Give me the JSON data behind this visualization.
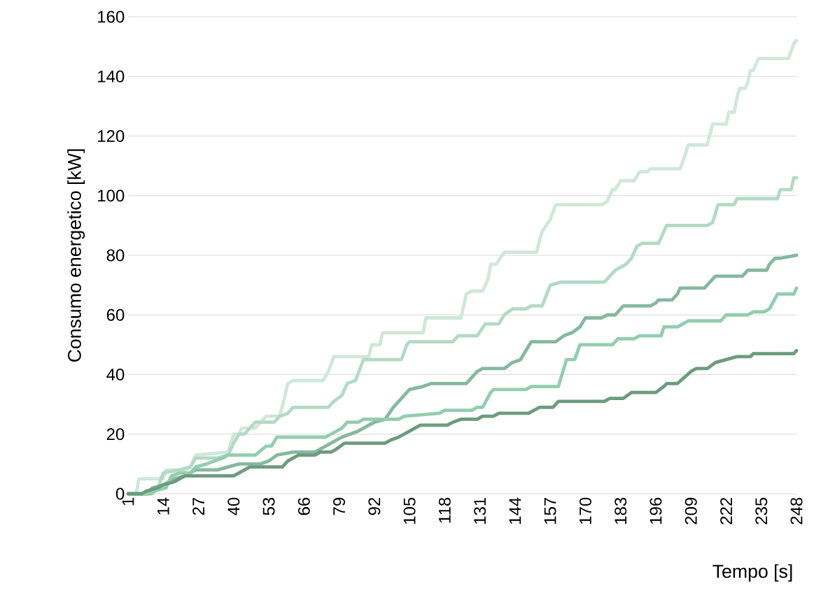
{
  "chart_data": {
    "type": "line",
    "xlabel": "Tempo [s]",
    "ylabel": "Consumo energetico [kW]",
    "xlim": [
      1,
      248
    ],
    "ylim": [
      0,
      160
    ],
    "xticks": [
      1,
      14,
      27,
      40,
      53,
      66,
      79,
      92,
      105,
      118,
      131,
      144,
      157,
      170,
      183,
      196,
      209,
      222,
      235,
      248
    ],
    "yticks": [
      0,
      20,
      40,
      60,
      80,
      100,
      120,
      140,
      160
    ],
    "grid": "y",
    "line_style": "solid",
    "series": [
      {
        "color": "#d0e7da",
        "x": [
          1,
          4,
          5,
          14,
          15,
          22,
          24,
          26,
          38,
          40,
          42,
          43,
          48,
          50,
          52,
          57,
          59,
          60,
          62,
          73,
          75,
          77,
          90,
          91,
          94,
          95,
          110,
          111,
          124,
          126,
          128,
          132,
          134,
          135,
          137,
          140,
          152,
          153,
          154,
          157,
          159,
          176,
          178,
          180,
          181,
          183,
          188,
          190,
          193,
          194,
          205,
          207,
          208,
          215,
          217,
          222,
          223,
          225,
          226,
          227,
          229,
          230,
          231,
          232,
          234,
          245,
          247,
          248
        ],
        "values": [
          0,
          0,
          5,
          5,
          8,
          8,
          9,
          13,
          14,
          20,
          20,
          22,
          22,
          24,
          26,
          26,
          33,
          37,
          38,
          38,
          41,
          46,
          46,
          50,
          50,
          54,
          54,
          59,
          59,
          67,
          68,
          68,
          72,
          77,
          77,
          81,
          81,
          85,
          88,
          92,
          97,
          97,
          98,
          102,
          102,
          105,
          105,
          108,
          108,
          109,
          109,
          114,
          117,
          117,
          124,
          124,
          128,
          128,
          133,
          136,
          136,
          138,
          142,
          142,
          146,
          146,
          151,
          152
        ]
      },
      {
        "color": "#b3dac4",
        "x": [
          1,
          10,
          12,
          14,
          20,
          24,
          26,
          34,
          38,
          40,
          42,
          44,
          46,
          48,
          55,
          57,
          60,
          62,
          75,
          77,
          80,
          82,
          85,
          88,
          102,
          104,
          105,
          121,
          123,
          130,
          133,
          138,
          140,
          143,
          148,
          150,
          154,
          157,
          161,
          177,
          179,
          181,
          183,
          185,
          187,
          189,
          191,
          197,
          199,
          200,
          215,
          217,
          219,
          225,
          226,
          241,
          242,
          246,
          247,
          248
        ],
        "values": [
          0,
          0,
          2,
          7,
          8,
          9,
          12,
          12,
          13,
          17,
          20,
          20,
          22,
          24,
          24,
          26,
          27,
          29,
          29,
          31,
          33,
          37,
          38,
          45,
          45,
          50,
          51,
          51,
          53,
          53,
          57,
          57,
          60,
          62,
          62,
          63,
          63,
          70,
          71,
          71,
          73,
          75,
          76,
          77,
          79,
          83,
          84,
          84,
          88,
          90,
          90,
          91,
          97,
          97,
          99,
          99,
          102,
          102,
          106,
          106
        ]
      },
      {
        "color": "#86b89d",
        "x": [
          1,
          8,
          10,
          14,
          18,
          22,
          26,
          34,
          38,
          42,
          50,
          53,
          56,
          62,
          70,
          74,
          78,
          80,
          86,
          88,
          92,
          96,
          99,
          103,
          105,
          110,
          113,
          126,
          130,
          132,
          140,
          143,
          146,
          150,
          159,
          162,
          165,
          168,
          170,
          176,
          178,
          181,
          183,
          184,
          194,
          196,
          197,
          202,
          204,
          205,
          214,
          218,
          228,
          230,
          237,
          238,
          240,
          242,
          248
        ],
        "values": [
          0,
          0,
          2,
          3,
          5,
          6,
          8,
          8,
          9,
          10,
          10,
          11,
          13,
          14,
          14,
          16,
          18,
          19,
          21,
          22,
          24,
          25,
          29,
          33,
          35,
          36,
          37,
          37,
          41,
          42,
          42,
          44,
          45,
          51,
          51,
          53,
          54,
          56,
          59,
          59,
          60,
          60,
          62,
          63,
          63,
          64,
          65,
          65,
          67,
          69,
          69,
          73,
          73,
          75,
          75,
          77,
          79,
          79,
          80
        ]
      },
      {
        "color": "#93cdaf",
        "x": [
          1,
          9,
          11,
          15,
          17,
          20,
          24,
          26,
          30,
          36,
          38,
          48,
          52,
          54,
          56,
          74,
          76,
          80,
          82,
          86,
          88,
          101,
          103,
          116,
          118,
          128,
          130,
          132,
          135,
          136,
          148,
          150,
          160,
          163,
          166,
          168,
          180,
          182,
          188,
          190,
          198,
          199,
          204,
          206,
          208,
          220,
          222,
          230,
          232,
          236,
          238,
          241,
          247,
          248
        ],
        "values": [
          0,
          0,
          1,
          2,
          6,
          7,
          7,
          9,
          10,
          12,
          13,
          13,
          16,
          16,
          19,
          19,
          20,
          22,
          24,
          24,
          25,
          25,
          26,
          27,
          28,
          28,
          29,
          29,
          34,
          35,
          35,
          36,
          36,
          45,
          45,
          50,
          50,
          52,
          52,
          53,
          53,
          56,
          56,
          57,
          58,
          58,
          60,
          60,
          61,
          61,
          62,
          67,
          67,
          69
        ]
      },
      {
        "color": "#6d9b80",
        "x": [
          1,
          6,
          8,
          12,
          14,
          18,
          22,
          40,
          44,
          46,
          58,
          60,
          64,
          70,
          72,
          76,
          78,
          81,
          96,
          98,
          101,
          105,
          109,
          119,
          121,
          124,
          130,
          132,
          136,
          138,
          149,
          151,
          153,
          158,
          160,
          177,
          179,
          184,
          187,
          196,
          199,
          200,
          204,
          209,
          211,
          215,
          218,
          222,
          226,
          231,
          232,
          247,
          248
        ],
        "values": [
          0,
          0,
          1,
          2,
          3,
          4,
          6,
          6,
          8,
          9,
          9,
          11,
          13,
          13,
          14,
          14,
          15,
          17,
          17,
          18,
          19,
          21,
          23,
          23,
          24,
          25,
          25,
          26,
          26,
          27,
          27,
          28,
          29,
          29,
          31,
          31,
          32,
          32,
          34,
          34,
          36,
          37,
          37,
          41,
          42,
          42,
          44,
          45,
          46,
          46,
          47,
          47,
          48
        ]
      }
    ]
  }
}
